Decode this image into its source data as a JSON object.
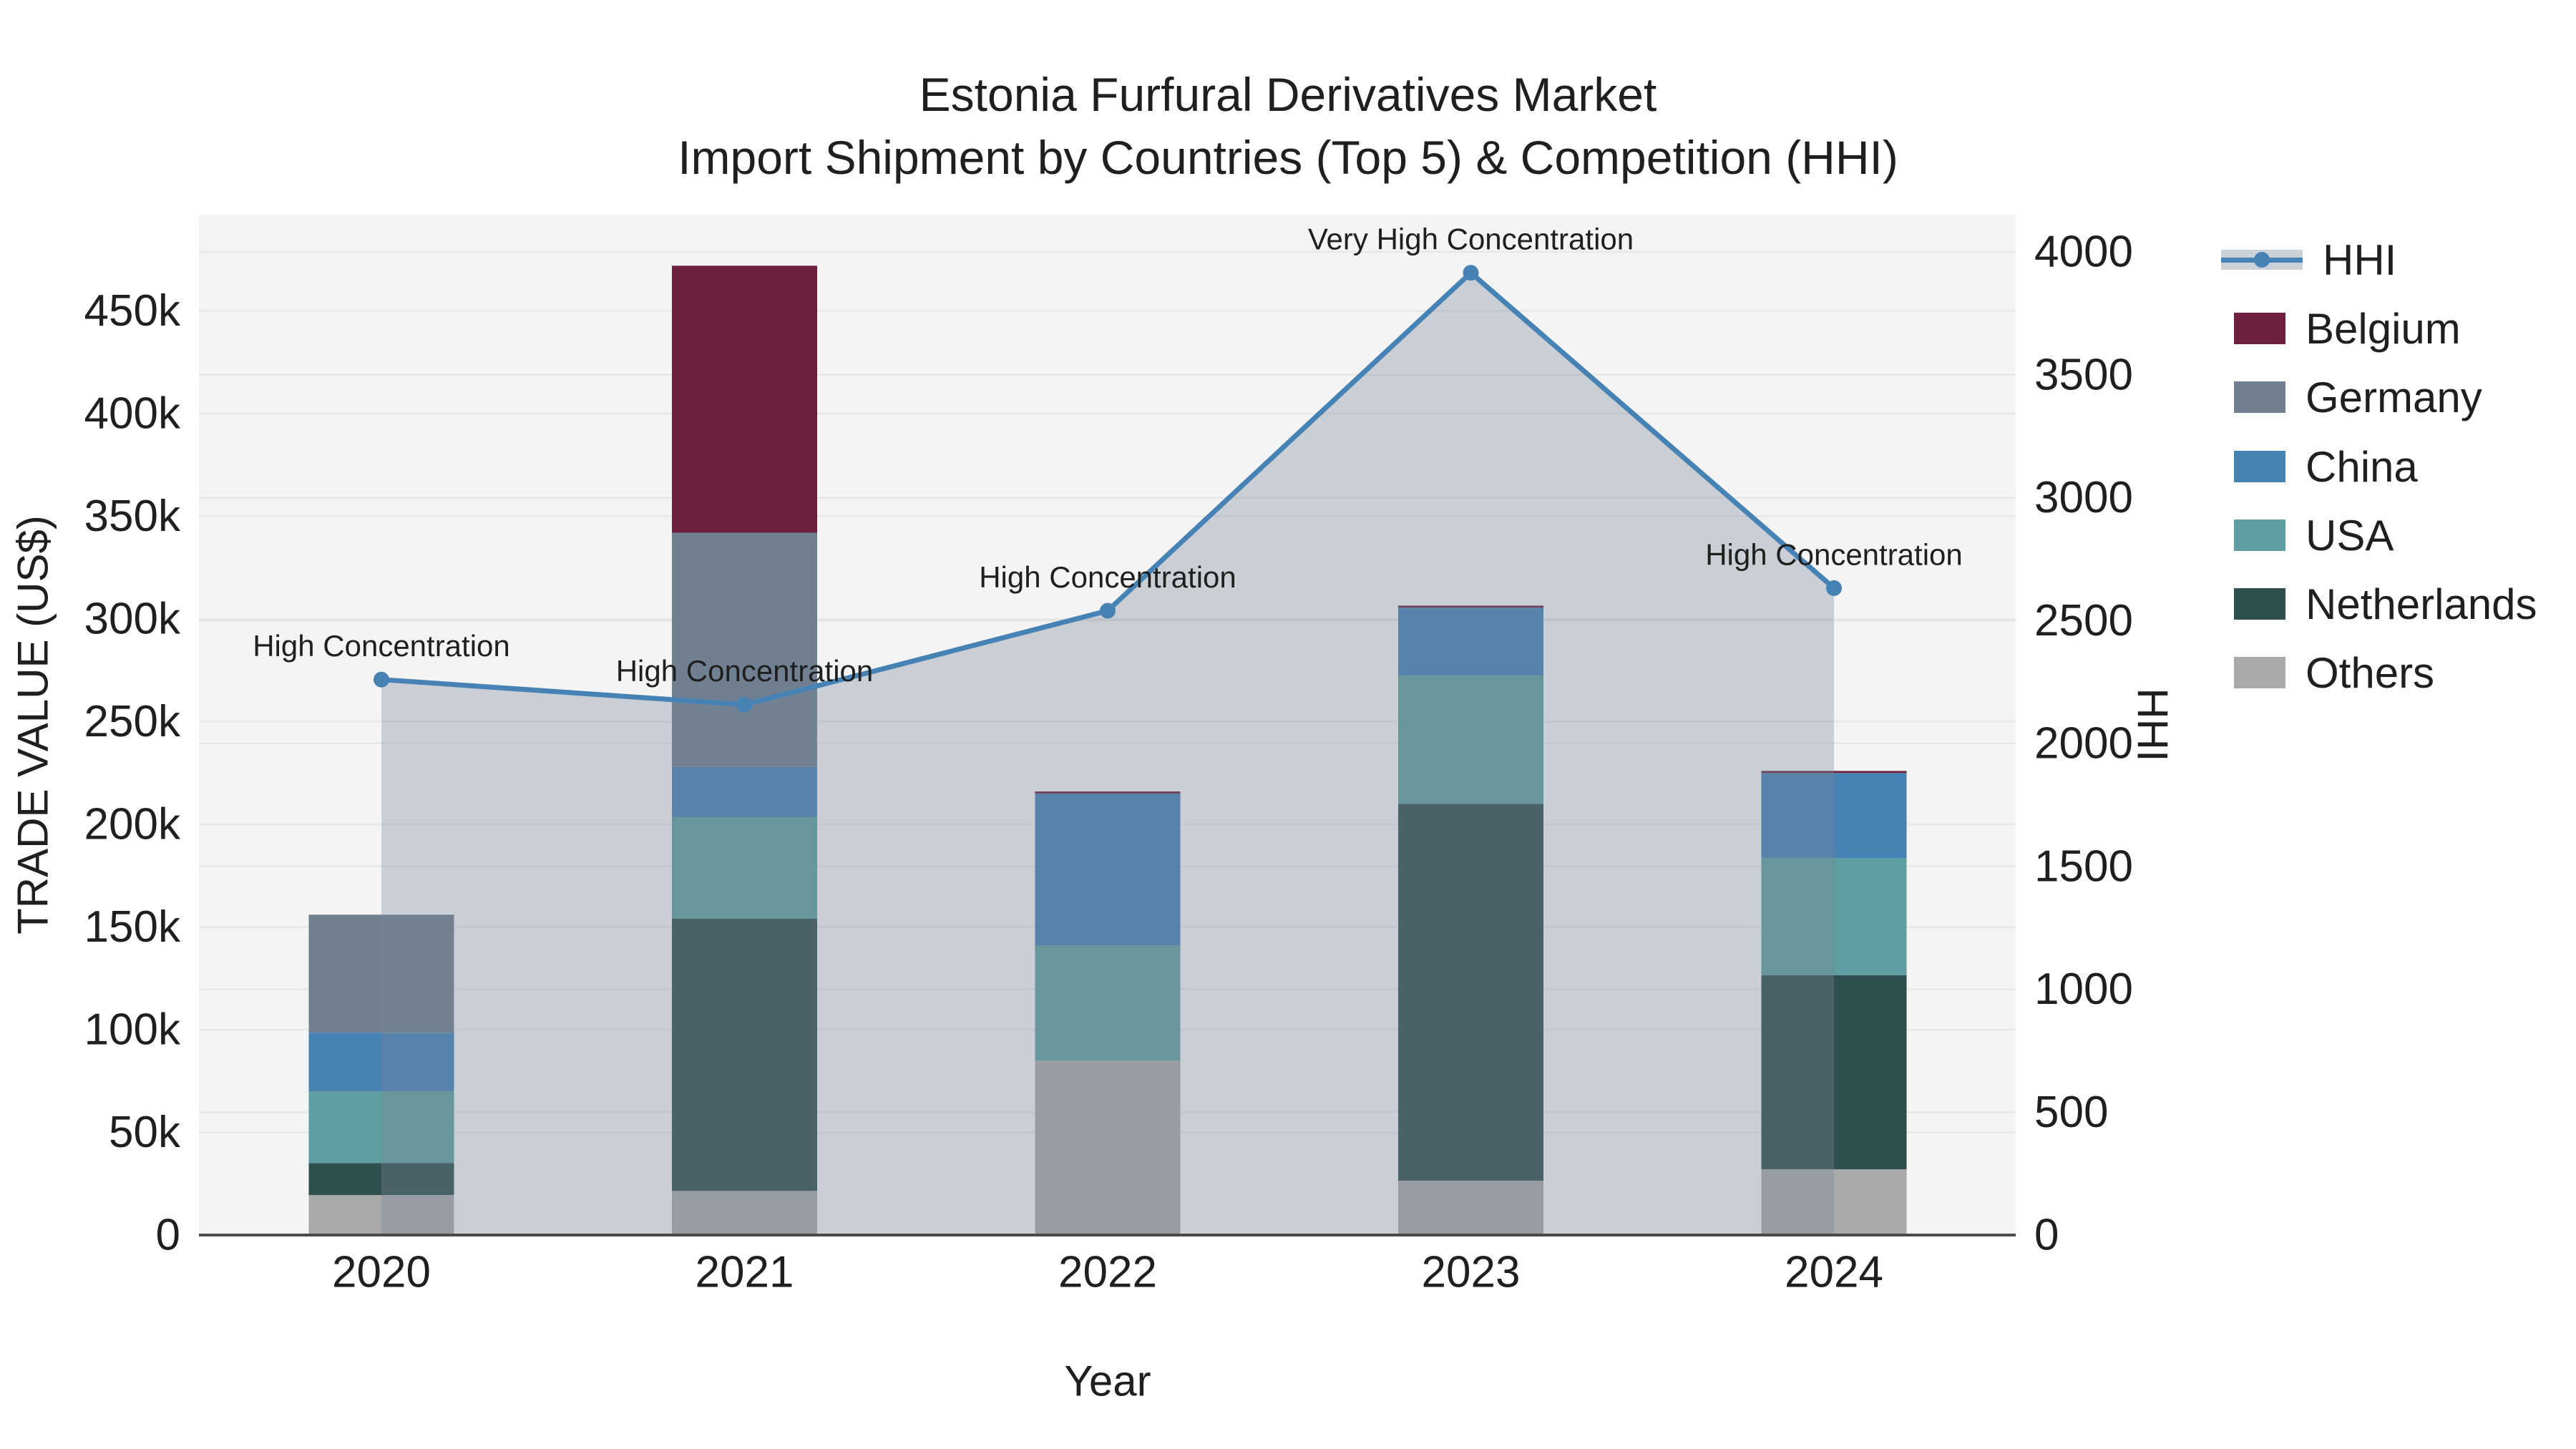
{
  "title": {
    "line1": "Estonia Furfural Derivatives Market",
    "line2": "Import Shipment by Countries (Top 5) & Competition (HHI)"
  },
  "axes": {
    "left": {
      "title": "TRADE VALUE (US$)",
      "tick_labels": [
        "0",
        "50k",
        "100k",
        "150k",
        "200k",
        "250k",
        "300k",
        "350k",
        "400k",
        "450k"
      ],
      "tick_values": [
        0,
        50000,
        100000,
        150000,
        200000,
        250000,
        300000,
        350000,
        400000,
        450000
      ]
    },
    "right": {
      "title": "HHI",
      "tick_labels": [
        "0",
        "500",
        "1000",
        "1500",
        "2000",
        "2500",
        "3000",
        "3500",
        "4000"
      ],
      "tick_values": [
        0,
        500,
        1000,
        1500,
        2000,
        2500,
        3000,
        3500,
        4000
      ]
    },
    "x": {
      "title": "Year",
      "tick_labels": [
        "2020",
        "2021",
        "2022",
        "2023",
        "2024"
      ]
    }
  },
  "legend": {
    "items": [
      {
        "label": "HHI",
        "type": "line",
        "color": "#4682B4",
        "band_color": "#CBD1D9"
      },
      {
        "label": "Belgium",
        "type": "swatch",
        "color": "#6E1F40"
      },
      {
        "label": "Germany",
        "type": "swatch",
        "color": "#708090"
      },
      {
        "label": "China",
        "type": "swatch",
        "color": "#4682B4"
      },
      {
        "label": "USA",
        "type": "swatch",
        "color": "#5F9EA0"
      },
      {
        "label": "Netherlands",
        "type": "swatch",
        "color": "#2F4F4F"
      },
      {
        "label": "Others",
        "type": "swatch",
        "color": "#A9A9A9"
      }
    ]
  },
  "annotations": [
    {
      "category": "2020",
      "text": "High Concentration"
    },
    {
      "category": "2021",
      "text": "High Concentration"
    },
    {
      "category": "2022",
      "text": "High Concentration"
    },
    {
      "category": "2023",
      "text": "Very High Concentration"
    },
    {
      "category": "2024",
      "text": "High Concentration"
    }
  ],
  "chart_data": {
    "type": "bar",
    "subtype": "stacked-bars-with-hhi-line",
    "title": "Estonia Furfural Derivatives Market — Import Shipment by Countries (Top 5) & Competition (HHI)",
    "xlabel": "Year",
    "ylabel_left": "TRADE VALUE (US$)",
    "ylabel_right": "HHI",
    "categories": [
      "2020",
      "2021",
      "2022",
      "2023",
      "2024"
    ],
    "bar_series": [
      {
        "name": "Others",
        "color": "#A9A9A9",
        "values": [
          19500,
          21500,
          85000,
          26500,
          32000
        ]
      },
      {
        "name": "Netherlands",
        "color": "#2F4F4F",
        "values": [
          15500,
          132500,
          0,
          183500,
          94500
        ]
      },
      {
        "name": "USA",
        "color": "#5F9EA0",
        "values": [
          35000,
          49500,
          56000,
          62500,
          57000
        ]
      },
      {
        "name": "China",
        "color": "#4682B4",
        "values": [
          28500,
          24500,
          74000,
          33000,
          41500
        ]
      },
      {
        "name": "Germany",
        "color": "#708090",
        "values": [
          57500,
          114000,
          0,
          0,
          0
        ]
      },
      {
        "name": "Belgium",
        "color": "#6E1F40",
        "values": [
          0,
          130000,
          1000,
          1000,
          1000
        ]
      }
    ],
    "bar_totals": [
      156000,
      472000,
      216000,
      306500,
      226000
    ],
    "line_series": {
      "name": "HHI",
      "color": "#4682B4",
      "area_color": "rgba(119,136,153,0.34)",
      "values": [
        2260,
        2158,
        2540,
        3915,
        2632
      ]
    },
    "left_ylim": [
      0,
      500000
    ],
    "right_ylim": [
      0,
      4000
    ],
    "grid": true,
    "legend_position": "right"
  },
  "colors": {
    "plot_bg": "#F4F4F4",
    "grid": "#E7E7E7",
    "axis_line": "#4A4A4A",
    "text": "#1F1F1F",
    "hhi_line": "#4682B4",
    "area_fill": "rgba(119,136,153,0.34)"
  }
}
